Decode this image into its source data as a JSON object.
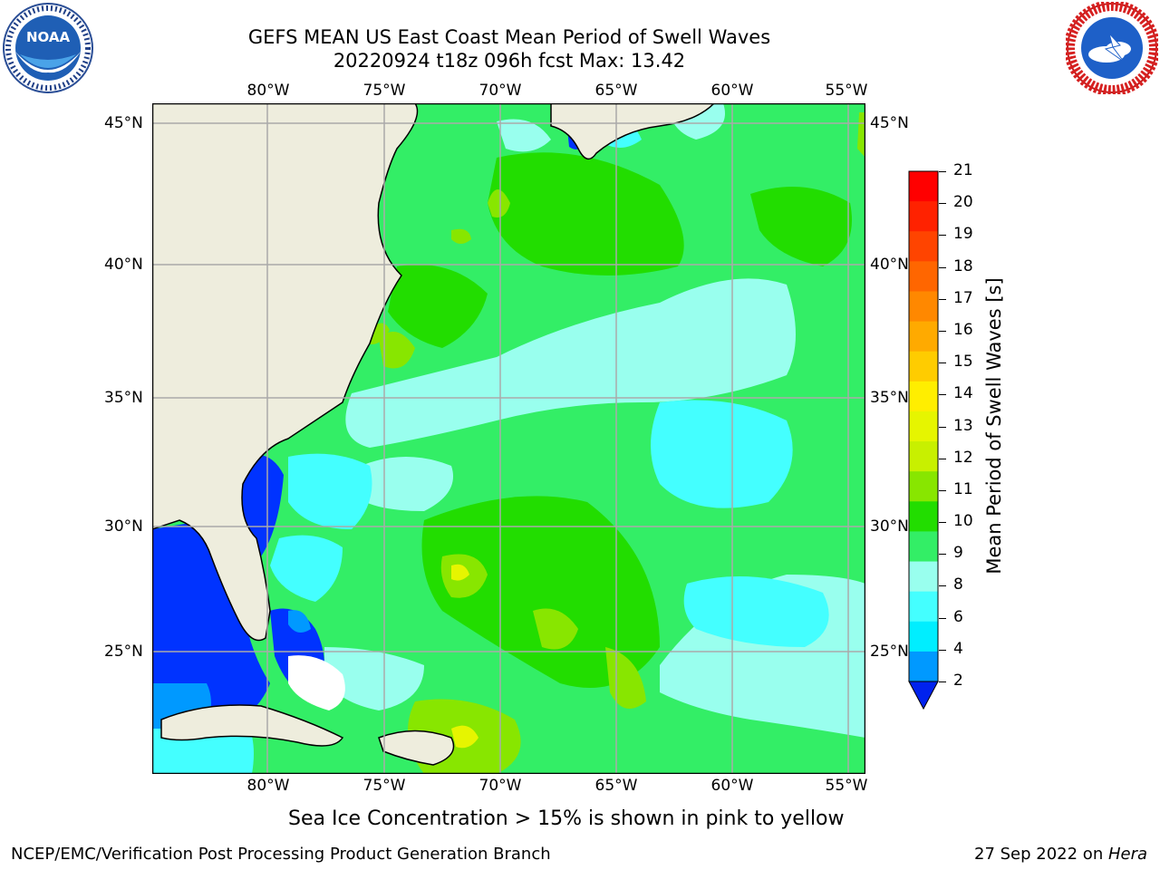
{
  "header": {
    "title_line1": "GEFS MEAN US East Coast Mean Period of Swell Waves",
    "title_line2": "20220924 t18z 096h fcst   Max: 13.42"
  },
  "logos": {
    "left": {
      "text": "NOAA",
      "ring_text": "NATIONAL OCEANIC AND ATMOSPHERIC ADMINISTRATION · U.S. DEPARTMENT OF COMMERCE",
      "icon": "noaa-logo"
    },
    "right": {
      "ring_text": "NATIONAL WEATHER SERVICE",
      "icon": "nws-logo"
    }
  },
  "map": {
    "lon_labels": [
      "80°W",
      "75°W",
      "70°W",
      "65°W",
      "60°W",
      "55°W"
    ],
    "lat_labels": [
      "45°N",
      "40°N",
      "35°N",
      "30°N",
      "25°N"
    ],
    "land_color": "#eeeddd",
    "missing_color": "#ffffff"
  },
  "colorbar": {
    "label": "Mean Period of Swell Waves [s]",
    "ticks": [
      "21",
      "20",
      "19",
      "18",
      "17",
      "16",
      "15",
      "14",
      "13",
      "12",
      "11",
      "10",
      "9",
      "8",
      "6",
      "4",
      "2"
    ],
    "colors": [
      "#ff0000",
      "#ff2200",
      "#ff4400",
      "#ff6600",
      "#ff8800",
      "#ffaa00",
      "#ffcc00",
      "#ffee00",
      "#e6f500",
      "#c8f000",
      "#88e600",
      "#22dd00",
      "#33ee66",
      "#99ffee",
      "#44ffff",
      "#00eeff",
      "#0099ff",
      "#0033ff"
    ],
    "extend_color": "#0022ee"
  },
  "footer": {
    "caption": "Sea Ice Concentration > 15% is shown in pink to yellow",
    "left": "NCEP/EMC/Verification Post Processing Product Generation Branch",
    "date": "27 Sep 2022 on ",
    "machine": "Hera"
  }
}
